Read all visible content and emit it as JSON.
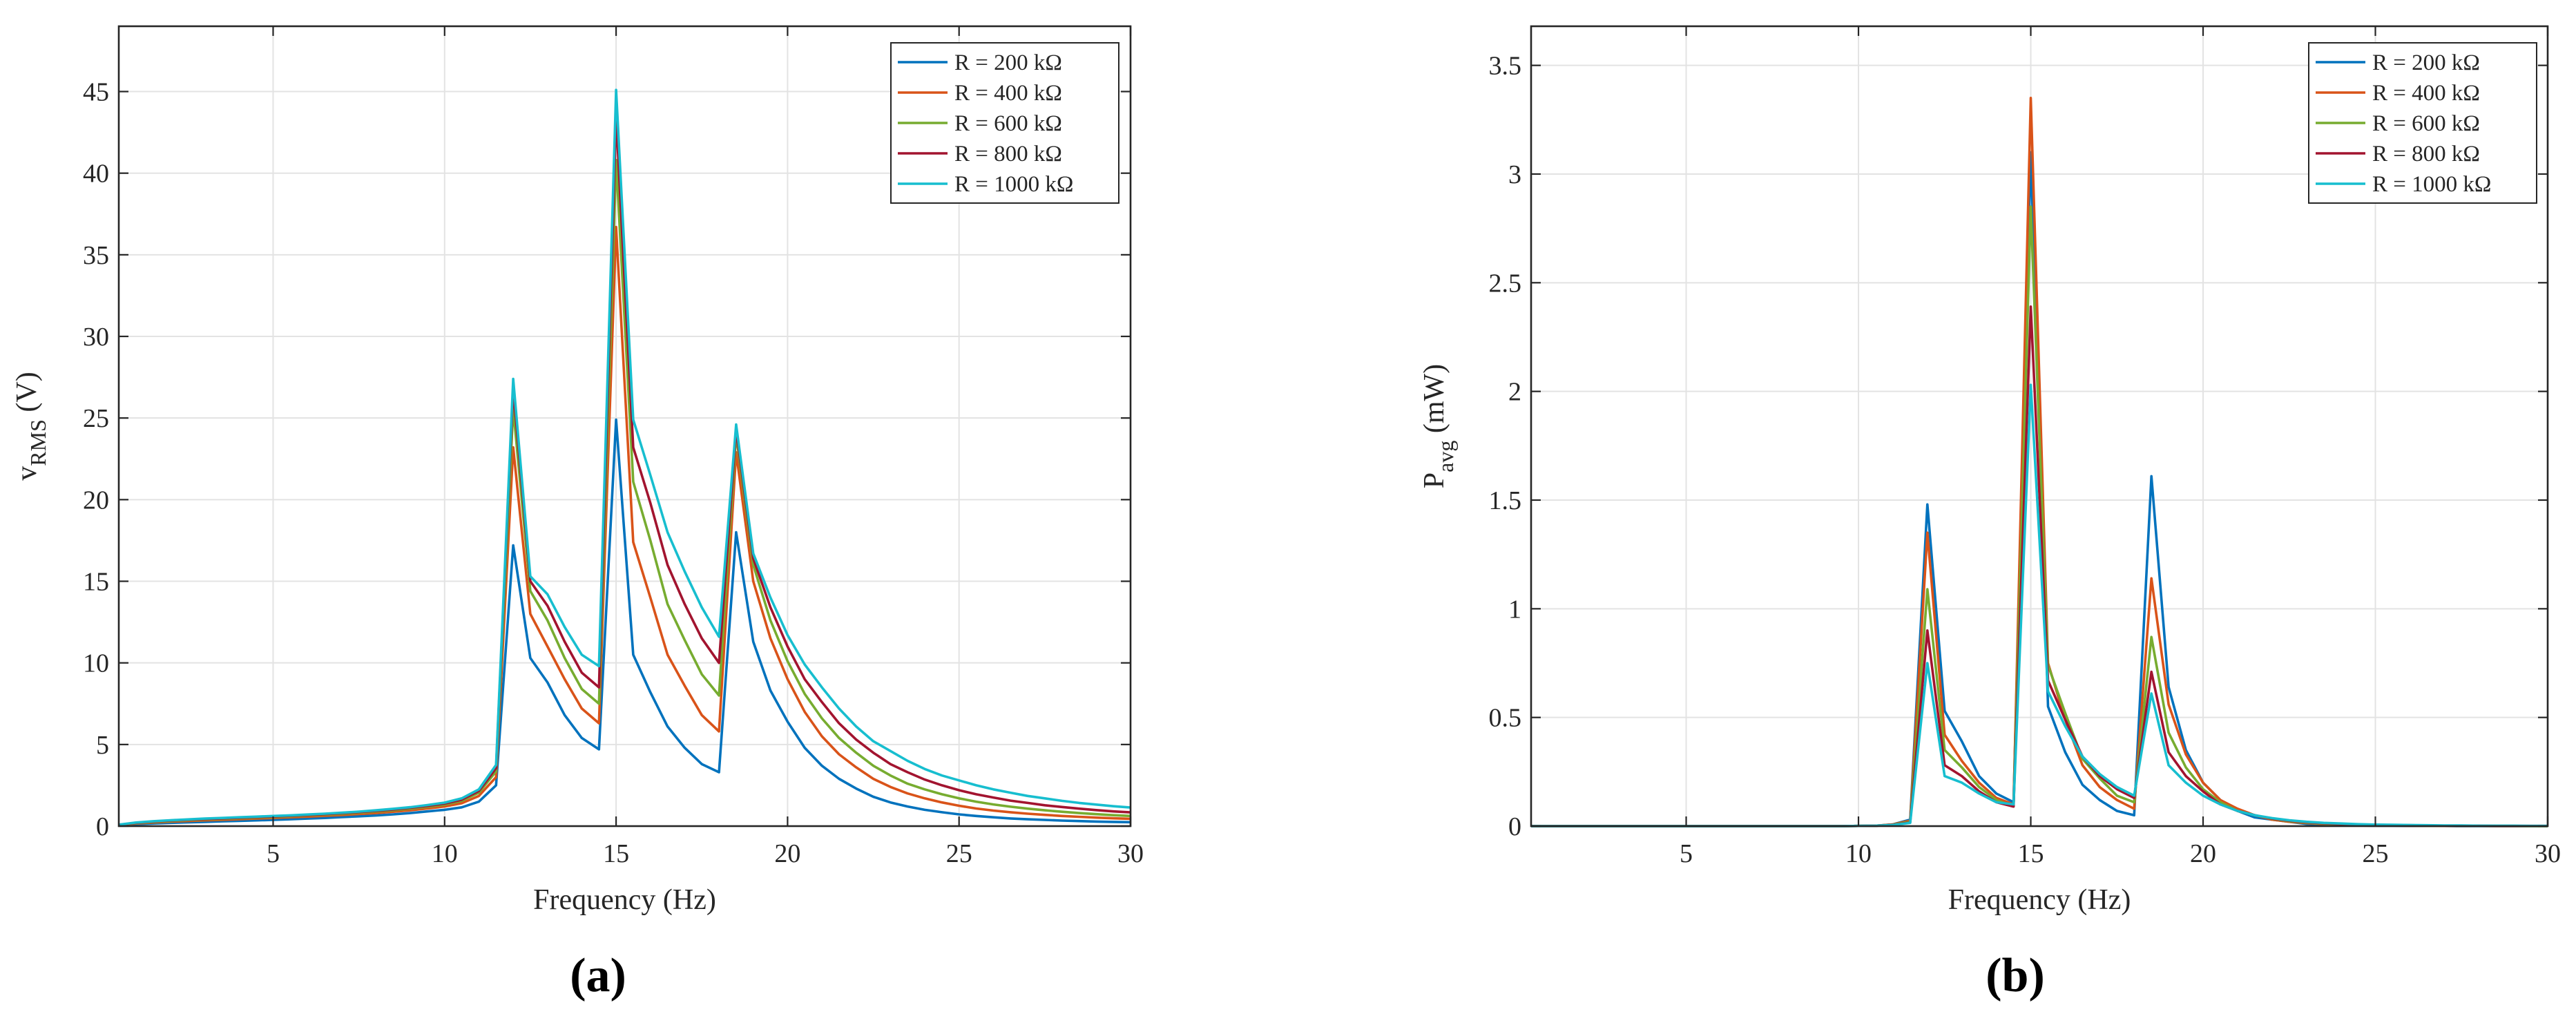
{
  "colors": {
    "series": [
      "#0072BD",
      "#D95319",
      "#77AC30",
      "#A2142F",
      "#17BECF"
    ],
    "axis": "#262626",
    "grid": "#e3e3e3"
  },
  "panels": [
    {
      "label": "(a)"
    },
    {
      "label": "(b)"
    }
  ],
  "chart_data": [
    {
      "type": "line",
      "title": "",
      "xlabel": "Frequency (Hz)",
      "ylabel": "v",
      "ylabel_sub": "RMS",
      "ylabel_unit": " (V)",
      "xlim": [
        0.5,
        30
      ],
      "ylim": [
        0,
        49
      ],
      "xticks": [
        5,
        10,
        15,
        20,
        25,
        30
      ],
      "yticks": [
        0,
        5,
        10,
        15,
        20,
        25,
        30,
        35,
        40,
        45
      ],
      "ytick_labels": [
        "0",
        "5",
        "10",
        "15",
        "20",
        "25",
        "30",
        "35",
        "40",
        "45"
      ],
      "grid": true,
      "legend_position": "top-right",
      "x": [
        0.5,
        1,
        1.5,
        2,
        2.5,
        3,
        3.5,
        4,
        4.5,
        5,
        5.5,
        6,
        6.5,
        7,
        7.5,
        8,
        8.5,
        9,
        9.5,
        10,
        10.5,
        11,
        11.5,
        12,
        12.5,
        13,
        13.5,
        14,
        14.5,
        15,
        15.5,
        16,
        16.5,
        17,
        17.5,
        18,
        18.5,
        19,
        19.5,
        20,
        20.5,
        21,
        21.5,
        22,
        22.5,
        23,
        23.5,
        24,
        24.5,
        25,
        25.5,
        26,
        26.5,
        27,
        27.5,
        28,
        28.5,
        29,
        29.5,
        30
      ],
      "series": [
        {
          "legend": "R = 200 kΩ",
          "values": [
            0.05,
            0.12,
            0.16,
            0.2,
            0.23,
            0.26,
            0.29,
            0.32,
            0.35,
            0.38,
            0.42,
            0.46,
            0.5,
            0.55,
            0.6,
            0.65,
            0.72,
            0.8,
            0.9,
            1.0,
            1.15,
            1.5,
            2.5,
            17.2,
            10.3,
            8.8,
            6.8,
            5.4,
            4.7,
            24.9,
            10.5,
            8.2,
            6.1,
            4.8,
            3.8,
            3.3,
            18.0,
            11.3,
            8.3,
            6.4,
            4.8,
            3.7,
            2.9,
            2.3,
            1.8,
            1.45,
            1.2,
            1.0,
            0.85,
            0.72,
            0.62,
            0.54,
            0.47,
            0.42,
            0.38,
            0.34,
            0.31,
            0.28,
            0.26,
            0.24
          ]
        },
        {
          "legend": "R = 400 kΩ",
          "values": [
            0.06,
            0.16,
            0.22,
            0.27,
            0.31,
            0.35,
            0.38,
            0.42,
            0.46,
            0.5,
            0.54,
            0.58,
            0.63,
            0.68,
            0.74,
            0.8,
            0.88,
            0.97,
            1.08,
            1.2,
            1.4,
            1.85,
            3.0,
            23.2,
            13.0,
            11.0,
            9.0,
            7.2,
            6.3,
            36.7,
            17.4,
            14.0,
            10.5,
            8.6,
            6.8,
            5.8,
            22.9,
            15.0,
            11.5,
            9.0,
            7.0,
            5.5,
            4.4,
            3.6,
            2.9,
            2.4,
            2.0,
            1.7,
            1.45,
            1.25,
            1.08,
            0.95,
            0.85,
            0.76,
            0.69,
            0.62,
            0.57,
            0.52,
            0.48,
            0.45
          ]
        },
        {
          "legend": "R = 600 kΩ",
          "values": [
            0.07,
            0.18,
            0.25,
            0.31,
            0.36,
            0.4,
            0.44,
            0.48,
            0.52,
            0.56,
            0.6,
            0.65,
            0.7,
            0.75,
            0.82,
            0.89,
            0.97,
            1.07,
            1.19,
            1.32,
            1.55,
            2.05,
            3.35,
            25.6,
            14.4,
            12.6,
            10.3,
            8.4,
            7.5,
            40.8,
            21.1,
            17.5,
            13.6,
            11.4,
            9.3,
            8.0,
            24.0,
            16.0,
            12.6,
            10.1,
            8.1,
            6.6,
            5.4,
            4.5,
            3.7,
            3.1,
            2.6,
            2.25,
            1.95,
            1.7,
            1.5,
            1.33,
            1.19,
            1.07,
            0.97,
            0.88,
            0.8,
            0.73,
            0.67,
            0.62
          ]
        },
        {
          "legend": "R = 800 kΩ",
          "values": [
            0.08,
            0.2,
            0.28,
            0.34,
            0.39,
            0.43,
            0.47,
            0.51,
            0.55,
            0.59,
            0.63,
            0.68,
            0.73,
            0.79,
            0.86,
            0.93,
            1.02,
            1.12,
            1.24,
            1.38,
            1.62,
            2.15,
            3.55,
            26.8,
            15.0,
            13.5,
            11.3,
            9.4,
            8.5,
            43.5,
            23.2,
            19.8,
            16.0,
            13.6,
            11.5,
            10.0,
            24.3,
            16.4,
            13.4,
            11.0,
            9.0,
            7.6,
            6.3,
            5.3,
            4.5,
            3.8,
            3.3,
            2.85,
            2.5,
            2.2,
            1.95,
            1.75,
            1.56,
            1.42,
            1.28,
            1.17,
            1.07,
            0.98,
            0.9,
            0.84
          ]
        },
        {
          "legend": "R = 1000 kΩ",
          "values": [
            0.09,
            0.22,
            0.3,
            0.36,
            0.41,
            0.46,
            0.5,
            0.54,
            0.58,
            0.62,
            0.66,
            0.71,
            0.76,
            0.82,
            0.89,
            0.97,
            1.06,
            1.16,
            1.29,
            1.44,
            1.7,
            2.25,
            3.75,
            27.4,
            15.3,
            14.2,
            12.2,
            10.5,
            9.8,
            45.1,
            24.9,
            21.5,
            18.0,
            15.6,
            13.4,
            11.6,
            24.6,
            16.7,
            14.0,
            11.7,
            9.9,
            8.5,
            7.2,
            6.1,
            5.2,
            4.6,
            4.0,
            3.5,
            3.1,
            2.8,
            2.5,
            2.25,
            2.05,
            1.85,
            1.7,
            1.55,
            1.42,
            1.32,
            1.22,
            1.14
          ]
        }
      ]
    },
    {
      "type": "line",
      "title": "",
      "xlabel": "Frequency (Hz)",
      "ylabel": "P",
      "ylabel_sub": "avg",
      "ylabel_unit": " (mW)",
      "xlim": [
        0.5,
        30
      ],
      "ylim": [
        0,
        3.68
      ],
      "xticks": [
        5,
        10,
        15,
        20,
        25,
        30
      ],
      "yticks": [
        0,
        0.5,
        1,
        1.5,
        2,
        2.5,
        3,
        3.5
      ],
      "ytick_labels": [
        "0",
        "0.5",
        "1",
        "1.5",
        "2",
        "2.5",
        "3",
        "3.5"
      ],
      "grid": true,
      "legend_position": "top-right",
      "x": [
        0.5,
        1,
        1.5,
        2,
        2.5,
        3,
        3.5,
        4,
        4.5,
        5,
        5.5,
        6,
        6.5,
        7,
        7.5,
        8,
        8.5,
        9,
        9.5,
        10,
        10.5,
        11,
        11.5,
        12,
        12.5,
        13,
        13.5,
        14,
        14.5,
        15,
        15.5,
        16,
        16.5,
        17,
        17.5,
        18,
        18.5,
        19,
        19.5,
        20,
        20.5,
        21,
        21.5,
        22,
        22.5,
        23,
        23.5,
        24,
        24.5,
        25,
        25.5,
        26,
        26.5,
        27,
        27.5,
        28,
        28.5,
        29,
        29.5,
        30
      ],
      "series": [
        {
          "legend": "R = 200 kΩ",
          "values": [
            0,
            0,
            0,
            0,
            0,
            0,
            0,
            0,
            0,
            0,
            0,
            0,
            0,
            0,
            0,
            0,
            0,
            0,
            0,
            0.001,
            0.002,
            0.008,
            0.03,
            1.48,
            0.53,
            0.39,
            0.23,
            0.15,
            0.11,
            3.1,
            0.55,
            0.34,
            0.19,
            0.12,
            0.07,
            0.05,
            1.61,
            0.64,
            0.35,
            0.2,
            0.12,
            0.07,
            0.04,
            0.03,
            0.02,
            0.01,
            0.007,
            0.005,
            0.003,
            0.002,
            0.002,
            0.001,
            0.001,
            0.001,
            0,
            0,
            0,
            0,
            0,
            0
          ]
        },
        {
          "legend": "R = 400 kΩ",
          "values": [
            0,
            0,
            0,
            0,
            0,
            0,
            0,
            0,
            0,
            0,
            0,
            0,
            0,
            0,
            0,
            0,
            0,
            0,
            0,
            0.001,
            0.002,
            0.008,
            0.025,
            1.35,
            0.42,
            0.3,
            0.2,
            0.13,
            0.1,
            3.35,
            0.75,
            0.49,
            0.28,
            0.18,
            0.12,
            0.08,
            1.14,
            0.56,
            0.33,
            0.2,
            0.12,
            0.08,
            0.05,
            0.03,
            0.02,
            0.014,
            0.01,
            0.007,
            0.005,
            0.004,
            0.003,
            0.002,
            0.002,
            0.001,
            0.001,
            0.001,
            0,
            0,
            0,
            0
          ]
        },
        {
          "legend": "R = 600 kΩ",
          "values": [
            0,
            0,
            0,
            0,
            0,
            0,
            0,
            0,
            0,
            0,
            0,
            0,
            0,
            0,
            0,
            0,
            0,
            0,
            0,
            0.001,
            0.002,
            0.007,
            0.02,
            1.09,
            0.35,
            0.27,
            0.18,
            0.12,
            0.09,
            2.85,
            0.74,
            0.52,
            0.31,
            0.22,
            0.14,
            0.11,
            0.87,
            0.43,
            0.27,
            0.17,
            0.11,
            0.07,
            0.05,
            0.034,
            0.023,
            0.016,
            0.011,
            0.008,
            0.006,
            0.005,
            0.004,
            0.003,
            0.002,
            0.002,
            0.001,
            0.001,
            0.001,
            0.001,
            0,
            0
          ]
        },
        {
          "legend": "R = 800 kΩ",
          "values": [
            0,
            0,
            0,
            0,
            0,
            0,
            0,
            0,
            0,
            0,
            0,
            0,
            0,
            0,
            0,
            0,
            0,
            0,
            0,
            0.001,
            0.002,
            0.006,
            0.017,
            0.9,
            0.28,
            0.23,
            0.16,
            0.11,
            0.09,
            2.39,
            0.67,
            0.49,
            0.32,
            0.23,
            0.17,
            0.13,
            0.71,
            0.34,
            0.23,
            0.16,
            0.1,
            0.07,
            0.05,
            0.035,
            0.025,
            0.018,
            0.013,
            0.01,
            0.008,
            0.006,
            0.005,
            0.004,
            0.003,
            0.002,
            0.002,
            0.002,
            0.001,
            0.001,
            0.001,
            0.001
          ]
        },
        {
          "legend": "R = 1000 kΩ",
          "values": [
            0,
            0,
            0,
            0,
            0,
            0,
            0,
            0,
            0,
            0,
            0,
            0,
            0,
            0,
            0,
            0,
            0,
            0,
            0,
            0.001,
            0.002,
            0.005,
            0.015,
            0.75,
            0.23,
            0.2,
            0.15,
            0.11,
            0.1,
            2.03,
            0.62,
            0.46,
            0.32,
            0.24,
            0.18,
            0.14,
            0.61,
            0.28,
            0.2,
            0.14,
            0.1,
            0.07,
            0.05,
            0.037,
            0.027,
            0.02,
            0.015,
            0.012,
            0.009,
            0.007,
            0.006,
            0.005,
            0.004,
            0.003,
            0.003,
            0.002,
            0.002,
            0.002,
            0.001,
            0.001
          ]
        }
      ]
    }
  ]
}
